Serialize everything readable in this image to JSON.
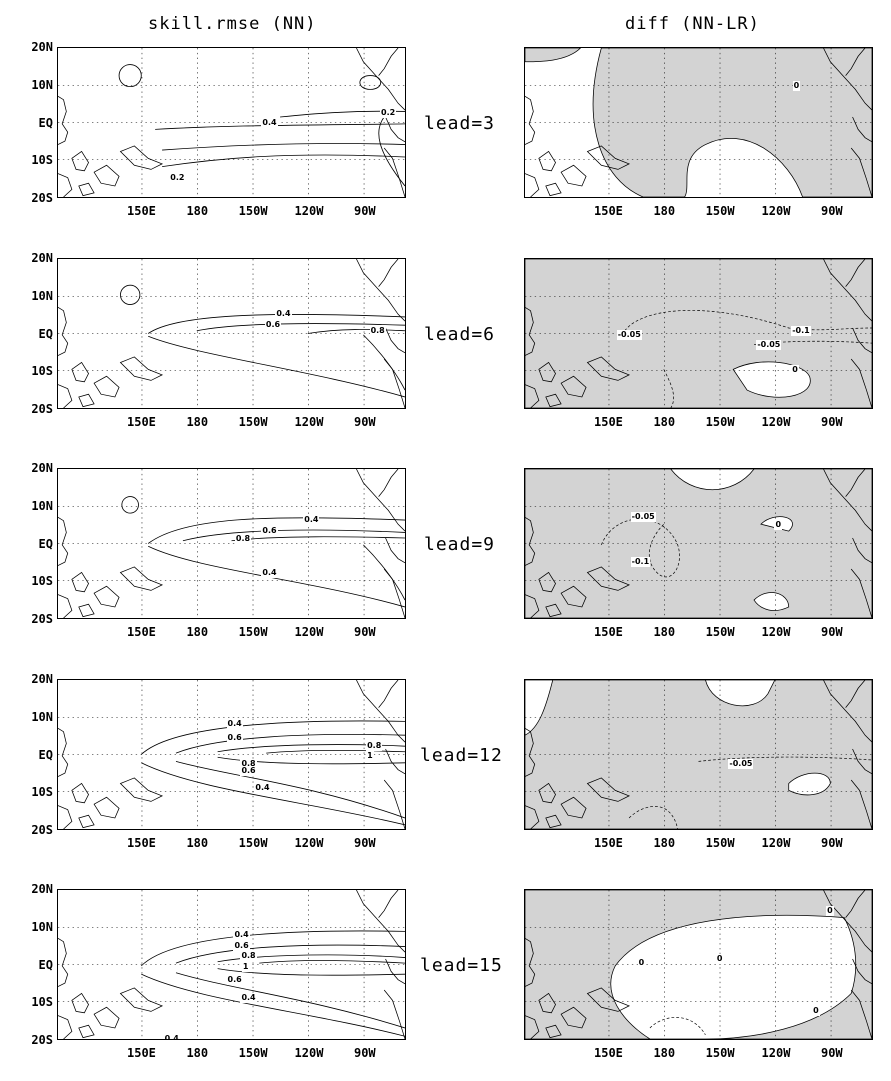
{
  "titles": {
    "left": "skill.rmse (NN)",
    "right": "diff (NN-LR)"
  },
  "lat_labels": [
    "20N",
    "10N",
    "EQ",
    "10S",
    "20S"
  ],
  "lon_labels": [
    "150E",
    "180",
    "150W",
    "120W",
    "90W"
  ],
  "rows": [
    {
      "lead": "lead=3",
      "left_labels": [
        "0.4",
        "0.2",
        "0.2"
      ],
      "right_labels": [
        "0"
      ]
    },
    {
      "lead": "lead=6",
      "left_labels": [
        "0.4",
        "0.6",
        "0.8"
      ],
      "right_labels": [
        "-0.05",
        "-0.1",
        "-0.05",
        "0"
      ]
    },
    {
      "lead": "lead=9",
      "left_labels": [
        "0.4",
        "0.6",
        "0.8",
        "0.4"
      ],
      "right_labels": [
        "-0.05",
        "-0.1",
        "0"
      ]
    },
    {
      "lead": "lead=12",
      "left_labels": [
        "0.4",
        "0.6",
        "0.8",
        "1",
        "0.8",
        "0.6",
        "0.4"
      ],
      "right_labels": [
        "-0.05"
      ]
    },
    {
      "lead": "lead=15",
      "left_labels": [
        "0.4",
        "0.6",
        "0.8",
        "1",
        "0.6",
        "0.4",
        "0.4"
      ],
      "right_labels": [
        "0",
        "0",
        "0",
        "0"
      ]
    }
  ],
  "colors": {
    "shade": "#d3d3d3",
    "line": "#000000",
    "background": "#ffffff"
  }
}
